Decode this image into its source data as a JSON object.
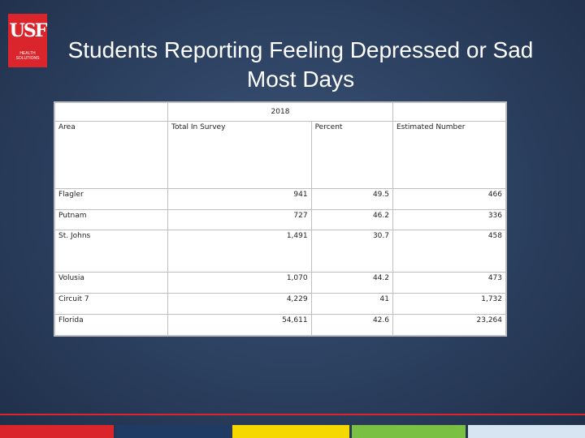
{
  "logo": {
    "mark": "USF",
    "subtitle": "HEALTH",
    "subtitle2": "SOLUTIONS"
  },
  "title": {
    "line1": "Students Reporting Feeling Depressed or Sad",
    "line2": "Most Days"
  },
  "table": {
    "year": "2018",
    "headers": {
      "area": "Area",
      "total": "Total In Survey",
      "percent": "Percent",
      "estimated": "Estimated Number"
    },
    "rows": [
      {
        "area": "Flagler",
        "total": "941",
        "percent": "49.5",
        "estimated": "466"
      },
      {
        "area": "Putnam",
        "total": "727",
        "percent": "46.2",
        "estimated": "336"
      },
      {
        "area": "St. Johns",
        "total": "1,491",
        "percent": "30.7",
        "estimated": "458"
      },
      {
        "area": "Volusia",
        "total": "1,070",
        "percent": "44.2",
        "estimated": "473"
      },
      {
        "area": "Circuit 7",
        "total": "4,229",
        "percent": "41",
        "estimated": "1,732"
      },
      {
        "area": "Florida",
        "total": "54,611",
        "percent": "42.6",
        "estimated": "23,264"
      }
    ]
  },
  "colors": {
    "brand_red": "#d9252b",
    "navy": "#1f3a63",
    "yellow": "#f5d800",
    "green": "#7ac143",
    "light_blue": "#d7e4f2"
  }
}
